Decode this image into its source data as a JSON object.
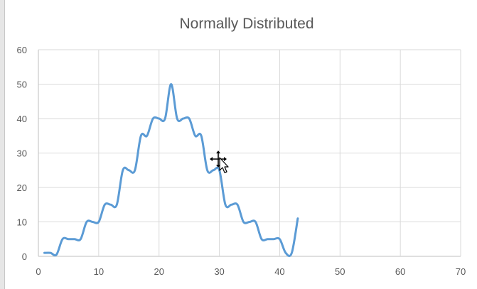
{
  "chart_data": {
    "type": "line",
    "title": "Normally Distributed",
    "xlabel": "",
    "ylabel": "",
    "xlim": [
      0,
      70
    ],
    "ylim": [
      0,
      60
    ],
    "x_ticks": [
      0,
      10,
      20,
      30,
      40,
      50,
      60,
      70
    ],
    "y_ticks": [
      0,
      10,
      20,
      30,
      40,
      50,
      60
    ],
    "grid": true,
    "smooth": true,
    "series": [
      {
        "color": "#5b9bd5",
        "points": [
          [
            1,
            1
          ],
          [
            2,
            1
          ],
          [
            3,
            0.5
          ],
          [
            4,
            5
          ],
          [
            5,
            5
          ],
          [
            6,
            5
          ],
          [
            7,
            5
          ],
          [
            8,
            10
          ],
          [
            9,
            10
          ],
          [
            10,
            10
          ],
          [
            11,
            15
          ],
          [
            12,
            15
          ],
          [
            13,
            15
          ],
          [
            14,
            25
          ],
          [
            15,
            25
          ],
          [
            16,
            25
          ],
          [
            17,
            35
          ],
          [
            18,
            35
          ],
          [
            19,
            40
          ],
          [
            20,
            40
          ],
          [
            21,
            40
          ],
          [
            22,
            50
          ],
          [
            23,
            40
          ],
          [
            24,
            40
          ],
          [
            25,
            40
          ],
          [
            26,
            35
          ],
          [
            27,
            35
          ],
          [
            28,
            25
          ],
          [
            29,
            25
          ],
          [
            30,
            25
          ],
          [
            31,
            15
          ],
          [
            32,
            15
          ],
          [
            33,
            15
          ],
          [
            34,
            10
          ],
          [
            35,
            10
          ],
          [
            36,
            10
          ],
          [
            37,
            5
          ],
          [
            38,
            5
          ],
          [
            39,
            5
          ],
          [
            40,
            5
          ],
          [
            41,
            1
          ],
          [
            42,
            1
          ],
          [
            43,
            11
          ]
        ]
      }
    ]
  },
  "cursor": {
    "icon": "move-cursor-icon"
  }
}
